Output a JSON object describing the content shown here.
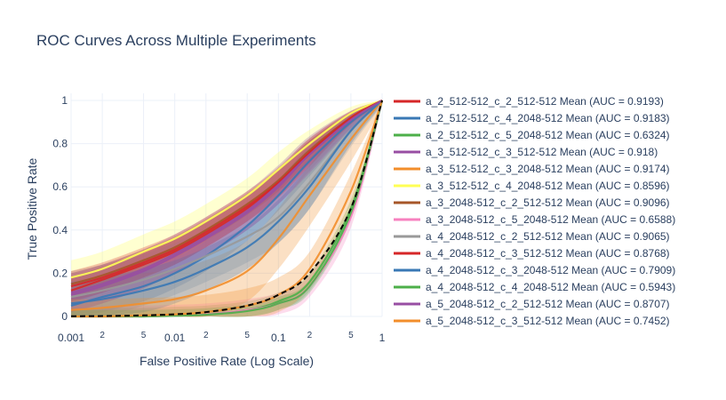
{
  "chart_data": {
    "type": "line",
    "title": "ROC Curves Across Multiple Experiments",
    "xlabel": "False Positive Rate (Log Scale)",
    "ylabel": "True Positive Rate",
    "x_scale": "log",
    "xlim": [
      0.001,
      1
    ],
    "ylim": [
      0,
      1
    ],
    "x_ticks": [
      {
        "value": 0.001,
        "label": "0.001",
        "major": true
      },
      {
        "value": 0.002,
        "label": "2",
        "major": false
      },
      {
        "value": 0.005,
        "label": "5",
        "major": false
      },
      {
        "value": 0.01,
        "label": "0.01",
        "major": true
      },
      {
        "value": 0.02,
        "label": "2",
        "major": false
      },
      {
        "value": 0.05,
        "label": "5",
        "major": false
      },
      {
        "value": 0.1,
        "label": "0.1",
        "major": true
      },
      {
        "value": 0.2,
        "label": "2",
        "major": false
      },
      {
        "value": 0.5,
        "label": "5",
        "major": false
      },
      {
        "value": 1,
        "label": "1",
        "major": true
      }
    ],
    "y_ticks": [
      {
        "value": 0,
        "label": "0"
      },
      {
        "value": 0.2,
        "label": "0.2"
      },
      {
        "value": 0.4,
        "label": "0.4"
      },
      {
        "value": 0.6,
        "label": "0.6"
      },
      {
        "value": 0.8,
        "label": "0.8"
      },
      {
        "value": 1,
        "label": "1"
      }
    ],
    "grid": true,
    "legend_position": "right",
    "x": [
      0.001,
      0.002,
      0.005,
      0.01,
      0.02,
      0.05,
      0.1,
      0.2,
      0.5,
      1
    ],
    "series": [
      {
        "name": "a_2_512-512_c_2_512-512 Mean (AUC = 0.9193)",
        "color": "#d62728",
        "values": [
          0.12,
          0.17,
          0.24,
          0.3,
          0.38,
          0.5,
          0.62,
          0.76,
          0.92,
          1.0
        ],
        "band": 0.06
      },
      {
        "name": "a_2_512-512_c_4_2048-512 Mean (AUC = 0.9183)",
        "color": "#3a78b5",
        "values": [
          0.05,
          0.09,
          0.14,
          0.2,
          0.28,
          0.42,
          0.56,
          0.72,
          0.9,
          1.0
        ],
        "band": 0.07
      },
      {
        "name": "a_2_512-512_c_5_2048-512 Mean (AUC = 0.6324)",
        "color": "#4daf4a",
        "values": [
          0.0,
          0.0,
          0.0,
          0.005,
          0.01,
          0.03,
          0.07,
          0.16,
          0.5,
          1.0
        ],
        "band": 0.04
      },
      {
        "name": "a_3_512-512_c_3_512-512 Mean (AUC = 0.918)",
        "color": "#984ea3",
        "values": [
          0.1,
          0.14,
          0.21,
          0.28,
          0.36,
          0.48,
          0.6,
          0.75,
          0.91,
          1.0
        ],
        "band": 0.08
      },
      {
        "name": "a_3_512-512_c_3_2048-512 Mean (AUC = 0.9174)",
        "color": "#f28e2b",
        "values": [
          0.03,
          0.04,
          0.06,
          0.08,
          0.12,
          0.21,
          0.36,
          0.56,
          0.82,
          1.0
        ],
        "band": 0.14
      },
      {
        "name": "a_3_512-512_c_4_2048-512 Mean (AUC = 0.8596)",
        "color": "#ffff55",
        "values": [
          0.18,
          0.22,
          0.3,
          0.36,
          0.44,
          0.56,
          0.68,
          0.8,
          0.94,
          1.0
        ],
        "band": 0.08
      },
      {
        "name": "a_3_2048-512_c_2_512-512 Mean (AUC = 0.9096)",
        "color": "#a65628",
        "values": [
          0.15,
          0.19,
          0.26,
          0.32,
          0.4,
          0.52,
          0.63,
          0.77,
          0.92,
          1.0
        ],
        "band": 0.05
      },
      {
        "name": "a_3_2048-512_c_5_2048-512 Mean (AUC = 0.6588)",
        "color": "#f781bf",
        "values": [
          0.0,
          0.0,
          0.0,
          0.004,
          0.01,
          0.03,
          0.06,
          0.14,
          0.46,
          1.0
        ],
        "band": 0.05
      },
      {
        "name": "a_4_2048-512_c_2_512-512 Mean (AUC = 0.9065)",
        "color": "#999999",
        "values": [
          0.09,
          0.12,
          0.17,
          0.22,
          0.28,
          0.37,
          0.46,
          0.62,
          0.86,
          1.0
        ],
        "band": 0.12
      },
      {
        "name": "a_4_2048-512_c_3_512-512 Mean (AUC = 0.8768)",
        "color": "#d62728",
        "values": [
          0.14,
          0.18,
          0.25,
          0.31,
          0.39,
          0.51,
          0.62,
          0.76,
          0.92,
          1.0
        ],
        "band": 0.07
      },
      {
        "name": "a_4_2048-512_c_3_2048-512 Mean (AUC = 0.7909)",
        "color": "#3a78b5",
        "values": [
          0.06,
          0.08,
          0.12,
          0.16,
          0.22,
          0.32,
          0.44,
          0.6,
          0.86,
          1.0
        ],
        "band": 0.1
      },
      {
        "name": "a_4_2048-512_c_4_2048-512 Mean (AUC = 0.5943)",
        "color": "#4daf4a",
        "values": [
          0.0,
          0.0,
          0.0,
          0.003,
          0.008,
          0.025,
          0.06,
          0.14,
          0.48,
          1.0
        ],
        "band": 0.03
      },
      {
        "name": "a_5_2048-512_c_2_512-512 Mean (AUC = 0.8707)",
        "color": "#984ea3",
        "values": [
          0.11,
          0.15,
          0.22,
          0.29,
          0.37,
          0.49,
          0.61,
          0.75,
          0.91,
          1.0
        ],
        "band": 0.09
      },
      {
        "name": "a_5_2048-512_c_3_512-512 Mean (AUC = 0.7452)",
        "color": "#f28e2b",
        "values": [
          0.0,
          0.0,
          0.005,
          0.01,
          0.02,
          0.05,
          0.1,
          0.22,
          0.58,
          1.0
        ],
        "band": 0.08
      }
    ],
    "reference_line": {
      "style": "dashed",
      "color": "#000000",
      "x": [
        0.001,
        0.002,
        0.005,
        0.01,
        0.02,
        0.05,
        0.1,
        0.2,
        0.5,
        1
      ],
      "values": [
        0.001,
        0.002,
        0.005,
        0.01,
        0.02,
        0.05,
        0.1,
        0.2,
        0.5,
        1
      ]
    }
  }
}
